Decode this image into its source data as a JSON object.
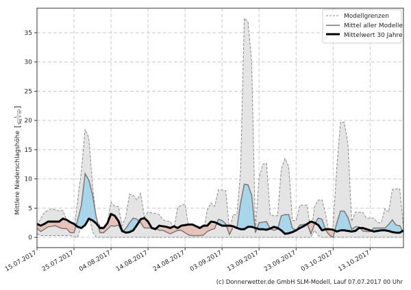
{
  "chart_data": {
    "type": "area",
    "ylabel": "Mittlere Niederschlagshöhe",
    "ylabel_unit_numerator": "L",
    "ylabel_unit_denominator": "Tag × m²",
    "xlim": [
      "15.07.2017",
      "22.10.2017"
    ],
    "ylim": [
      -1.75,
      39.2
    ],
    "grid": true,
    "legend_position": "top-right",
    "yticks": [
      "0",
      "5",
      "10",
      "15",
      "20",
      "25",
      "30",
      "35"
    ],
    "xticks": [
      "15.07.2017",
      "25.07.2017",
      "04.08.2017",
      "14.08.2017",
      "24.08.2017",
      "03.09.2017",
      "13.09.2017",
      "23.09.2017",
      "03.10.2017",
      "13.10.2017"
    ],
    "legend": {
      "bounds": "Modellgrenzen",
      "mean": "Mittel aller Modelle",
      "clim": "Mittelwert 30 Jahre"
    },
    "colors": {
      "band": "#e4e4e4",
      "bound_line": "#8a8a8a",
      "mean_line": "#777777",
      "clim_line": "#000000",
      "above_clim": "#a8d5ea",
      "below_clim": "#e6c2b9"
    },
    "x": [
      "15.07.2017",
      "16.07.2017",
      "17.07.2017",
      "18.07.2017",
      "19.07.2017",
      "20.07.2017",
      "21.07.2017",
      "22.07.2017",
      "23.07.2017",
      "24.07.2017",
      "25.07.2017",
      "26.07.2017",
      "27.07.2017",
      "28.07.2017",
      "29.07.2017",
      "30.07.2017",
      "31.07.2017",
      "01.08.2017",
      "02.08.2017",
      "03.08.2017",
      "04.08.2017",
      "05.08.2017",
      "06.08.2017",
      "07.08.2017",
      "08.08.2017",
      "09.08.2017",
      "10.08.2017",
      "11.08.2017",
      "12.08.2017",
      "13.08.2017",
      "14.08.2017",
      "15.08.2017",
      "16.08.2017",
      "17.08.2017",
      "18.08.2017",
      "19.08.2017",
      "20.08.2017",
      "21.08.2017",
      "22.08.2017",
      "23.08.2017",
      "24.08.2017",
      "25.08.2017",
      "26.08.2017",
      "27.08.2017",
      "28.08.2017",
      "29.08.2017",
      "30.08.2017",
      "31.08.2017",
      "01.09.2017",
      "02.09.2017",
      "03.09.2017",
      "04.09.2017",
      "05.09.2017",
      "06.09.2017",
      "07.09.2017",
      "08.09.2017",
      "09.09.2017",
      "10.09.2017",
      "11.09.2017",
      "12.09.2017",
      "13.09.2017",
      "14.09.2017",
      "15.09.2017",
      "16.09.2017",
      "17.09.2017",
      "18.09.2017",
      "19.09.2017",
      "20.09.2017",
      "21.09.2017",
      "22.09.2017",
      "23.09.2017",
      "24.09.2017",
      "25.09.2017",
      "26.09.2017",
      "27.09.2017",
      "28.09.2017",
      "29.09.2017",
      "30.09.2017",
      "01.10.2017",
      "02.10.2017",
      "03.10.2017",
      "04.10.2017",
      "05.10.2017",
      "06.10.2017",
      "07.10.2017",
      "08.10.2017",
      "09.10.2017",
      "10.10.2017",
      "11.10.2017",
      "12.10.2017",
      "13.10.2017",
      "14.10.2017",
      "15.10.2017",
      "16.10.2017",
      "17.10.2017",
      "18.10.2017",
      "19.10.2017",
      "20.10.2017",
      "21.10.2017",
      "22.10.2017"
    ],
    "series": [
      {
        "name": "Modellgrenzen (max)",
        "values": [
          2.0,
          3.2,
          4.3,
          4.6,
          4.9,
          4.7,
          4.5,
          4.6,
          3.0,
          1.5,
          1.0,
          6.5,
          11.3,
          18.5,
          17.0,
          9.0,
          3.1,
          2.0,
          1.6,
          2.5,
          6.0,
          5.3,
          5.3,
          2.0,
          3.5,
          7.4,
          7.2,
          6.4,
          7.5,
          3.5,
          4.3,
          4.2,
          4.1,
          3.9,
          3.0,
          2.8,
          2.7,
          1.6,
          5.1,
          5.5,
          5.7,
          1.6,
          0.8,
          0.8,
          0.8,
          1.0,
          4.7,
          5.9,
          5.3,
          8.1,
          8.1,
          8.0,
          1.2,
          3.9,
          3.9,
          11.3,
          37.5,
          36.9,
          30.0,
          1.2,
          10.2,
          12.5,
          12.7,
          3.9,
          3.7,
          3.7,
          11.7,
          13.5,
          12.1,
          2.9,
          2.8,
          5.5,
          5.5,
          5.5,
          0.6,
          5.3,
          6.4,
          6.4,
          3.9,
          0.4,
          2.0,
          12.0,
          19.7,
          19.7,
          16.0,
          2.7,
          4.3,
          4.3,
          4.3,
          3.3,
          3.3,
          3.3,
          2.5,
          2.5,
          4.9,
          4.3,
          8.2,
          8.3,
          8.3,
          1.6
        ]
      },
      {
        "name": "Modellgrenzen (min)",
        "values": [
          0.6,
          0.3,
          0.3,
          0.3,
          0.3,
          0.3,
          0.3,
          0.3,
          0.3,
          0.3,
          0.1,
          0.1,
          2.0,
          3.9,
          3.9,
          1.0,
          0.0,
          0,
          0,
          0,
          0,
          0,
          0,
          0,
          0,
          0,
          0,
          0,
          0,
          0,
          0,
          0,
          0,
          0,
          0,
          0,
          0,
          0,
          0,
          0,
          0,
          0,
          0,
          0,
          0,
          0,
          0,
          0,
          0,
          0,
          0,
          0,
          0,
          0,
          0,
          0,
          0,
          0,
          0,
          0,
          0,
          0,
          0,
          0,
          0,
          0,
          0,
          0,
          0,
          0,
          0,
          0,
          0,
          0,
          0,
          1.2,
          0.3,
          0,
          0,
          0,
          0,
          0,
          0,
          0,
          0,
          0,
          0,
          0,
          0,
          0,
          0,
          0,
          0,
          0,
          0,
          0,
          0,
          0,
          0,
          0
        ]
      },
      {
        "name": "Mittel aller Modelle",
        "values": [
          1.6,
          1.0,
          1.4,
          1.8,
          1.9,
          2.0,
          1.7,
          1.5,
          1.5,
          0.8,
          0.8,
          3.0,
          5.5,
          10.9,
          9.8,
          7.3,
          3.5,
          0.8,
          0.8,
          1.4,
          2.0,
          1.9,
          2.1,
          0.9,
          1.5,
          2.5,
          3.3,
          3.1,
          2.5,
          1.6,
          1.6,
          1.6,
          1.6,
          1.2,
          1.2,
          0.9,
          0.6,
          0.9,
          1.2,
          1.2,
          0.8,
          0.4,
          0.3,
          0.3,
          0.3,
          0.4,
          1.0,
          1.3,
          1.5,
          3.1,
          2.9,
          2.3,
          0.5,
          1.8,
          1.6,
          5.9,
          9.1,
          9.0,
          7.2,
          0.8,
          2.5,
          2.6,
          2.7,
          1.5,
          1.2,
          1.4,
          3.7,
          3.9,
          3.9,
          1.6,
          1.2,
          2.1,
          2.2,
          2.3,
          0.6,
          2.3,
          3.3,
          3.1,
          1.2,
          0.4,
          0.0,
          2.5,
          4.5,
          4.5,
          3.4,
          1.4,
          1.8,
          1.8,
          1.1,
          1.0,
          1.0,
          1.6,
          1.6,
          1.6,
          1.6,
          2.2,
          3.0,
          2.1,
          2.0,
          0.8
        ]
      },
      {
        "name": "Mittelwert 30 Jahre",
        "values": [
          2.3,
          2.0,
          2.3,
          2.7,
          2.7,
          2.7,
          2.7,
          3.2,
          3.0,
          2.6,
          2.3,
          1.8,
          1.6,
          2.1,
          3.2,
          2.9,
          2.4,
          1.6,
          1.6,
          2.4,
          4.0,
          3.7,
          2.8,
          1.1,
          0.8,
          0.9,
          1.2,
          2.1,
          3.1,
          3.3,
          2.7,
          1.6,
          1.4,
          2.0,
          1.9,
          1.8,
          1.6,
          1.9,
          1.6,
          2.0,
          2.1,
          2.2,
          2.2,
          1.9,
          1.6,
          2.0,
          2.0,
          2.7,
          2.6,
          2.3,
          2.0,
          2.0,
          2.0,
          1.9,
          1.6,
          1.4,
          1.4,
          1.8,
          1.8,
          1.6,
          1.4,
          1.4,
          1.3,
          1.5,
          1.8,
          1.6,
          1.2,
          0.6,
          0.7,
          0.9,
          1.2,
          1.6,
          1.9,
          2.3,
          2.7,
          2.5,
          2.1,
          1.2,
          1.4,
          1.4,
          1.3,
          1.0,
          1.2,
          1.2,
          1.1,
          1.0,
          1.1,
          1.6,
          1.6,
          1.4,
          1.2,
          1.0,
          1.1,
          1.2,
          1.2,
          1.1,
          0.9,
          0.8,
          0.8,
          1.2
        ]
      }
    ]
  },
  "footer": {
    "credit": "(c) Donnerwetter.de GmbH SLM-Modell, Lauf 07.07.2017 00 Uhr"
  }
}
